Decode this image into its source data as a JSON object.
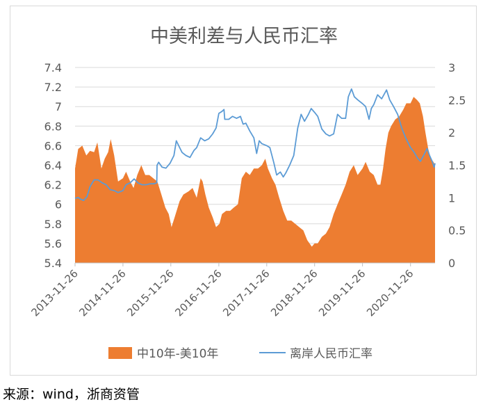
{
  "source_note": "来源：wind，浙商资管",
  "colors": {
    "area": "#ed7d31",
    "line": "#5b9bd5",
    "axis": "#bfbfbf",
    "text": "#595959",
    "title": "#595959"
  },
  "chart_data": {
    "type": "area",
    "title": "中美利差与人民币汇率",
    "x_tick_labels": [
      "2013-11-26",
      "2014-11-26",
      "2015-11-26",
      "2016-11-26",
      "2017-11-26",
      "2018-11-26",
      "2019-11-26",
      "2020-11-26"
    ],
    "y_left": {
      "ticks": [
        "5.4",
        "5.6",
        "5.8",
        "6",
        "6.2",
        "6.4",
        "6.6",
        "6.8",
        "7",
        "7.2",
        "7.4"
      ],
      "ylim": [
        5.4,
        7.4
      ]
    },
    "y_right": {
      "ticks": [
        "0",
        "0.5",
        "1",
        "1.5",
        "2",
        "2.5",
        "3"
      ],
      "ylim": [
        0,
        3
      ]
    },
    "x_range": [
      "2013-11-26",
      "2021-06-01"
    ],
    "legend_position": "bottom",
    "series": [
      {
        "name": "中10年-美10年",
        "type": "area",
        "axis": "right",
        "points": [
          [
            "2013-11-26",
            1.45
          ],
          [
            "2013-12-20",
            1.75
          ],
          [
            "2014-01-20",
            1.8
          ],
          [
            "2014-02-20",
            1.65
          ],
          [
            "2014-03-20",
            1.72
          ],
          [
            "2014-04-20",
            1.7
          ],
          [
            "2014-05-15",
            1.85
          ],
          [
            "2014-06-15",
            1.45
          ],
          [
            "2014-07-10",
            1.6
          ],
          [
            "2014-08-05",
            1.7
          ],
          [
            "2014-08-25",
            1.9
          ],
          [
            "2014-09-20",
            1.65
          ],
          [
            "2014-10-20",
            1.25
          ],
          [
            "2014-11-26",
            1.3
          ],
          [
            "2014-12-20",
            1.4
          ],
          [
            "2015-01-20",
            1.25
          ],
          [
            "2015-02-15",
            1.15
          ],
          [
            "2015-03-15",
            1.35
          ],
          [
            "2015-04-15",
            1.5
          ],
          [
            "2015-05-15",
            1.35
          ],
          [
            "2015-06-15",
            1.35
          ],
          [
            "2015-07-15",
            1.3
          ],
          [
            "2015-08-15",
            1.25
          ],
          [
            "2015-09-15",
            1.05
          ],
          [
            "2015-10-15",
            0.85
          ],
          [
            "2015-11-10",
            0.75
          ],
          [
            "2015-12-01",
            0.55
          ],
          [
            "2015-12-25",
            0.7
          ],
          [
            "2016-02-01",
            0.95
          ],
          [
            "2016-03-01",
            1.05
          ],
          [
            "2016-04-10",
            1.1
          ],
          [
            "2016-05-10",
            1.15
          ],
          [
            "2016-06-10",
            1.0
          ],
          [
            "2016-07-10",
            1.3
          ],
          [
            "2016-07-25",
            1.25
          ],
          [
            "2016-08-15",
            1.05
          ],
          [
            "2016-09-10",
            0.85
          ],
          [
            "2016-10-10",
            0.7
          ],
          [
            "2016-11-05",
            0.55
          ],
          [
            "2016-12-01",
            0.6
          ],
          [
            "2016-12-20",
            0.75
          ],
          [
            "2017-01-20",
            0.8
          ],
          [
            "2017-02-20",
            0.8
          ],
          [
            "2017-03-20",
            0.85
          ],
          [
            "2017-04-20",
            0.9
          ],
          [
            "2017-05-20",
            1.3
          ],
          [
            "2017-06-20",
            1.4
          ],
          [
            "2017-07-20",
            1.35
          ],
          [
            "2017-08-20",
            1.45
          ],
          [
            "2017-09-20",
            1.45
          ],
          [
            "2017-10-20",
            1.5
          ],
          [
            "2017-11-15",
            1.6
          ],
          [
            "2017-12-05",
            1.45
          ],
          [
            "2018-01-05",
            1.3
          ],
          [
            "2018-02-01",
            1.2
          ],
          [
            "2018-03-01",
            1.0
          ],
          [
            "2018-04-01",
            0.8
          ],
          [
            "2018-05-01",
            0.65
          ],
          [
            "2018-06-01",
            0.65
          ],
          [
            "2018-07-01",
            0.6
          ],
          [
            "2018-08-01",
            0.55
          ],
          [
            "2018-09-01",
            0.5
          ],
          [
            "2018-10-01",
            0.35
          ],
          [
            "2018-11-05",
            0.25
          ],
          [
            "2018-11-26",
            0.3
          ],
          [
            "2018-12-20",
            0.3
          ],
          [
            "2019-01-20",
            0.4
          ],
          [
            "2019-02-20",
            0.45
          ],
          [
            "2019-03-20",
            0.55
          ],
          [
            "2019-04-20",
            0.75
          ],
          [
            "2019-05-20",
            0.9
          ],
          [
            "2019-06-20",
            1.05
          ],
          [
            "2019-07-20",
            1.2
          ],
          [
            "2019-08-20",
            1.4
          ],
          [
            "2019-09-20",
            1.5
          ],
          [
            "2019-10-20",
            1.35
          ],
          [
            "2019-11-26",
            1.45
          ],
          [
            "2019-12-20",
            1.55
          ],
          [
            "2020-01-20",
            1.4
          ],
          [
            "2020-02-20",
            1.35
          ],
          [
            "2020-03-20",
            1.2
          ],
          [
            "2020-04-10",
            1.2
          ],
          [
            "2020-05-01",
            1.45
          ],
          [
            "2020-05-20",
            1.75
          ],
          [
            "2020-06-10",
            2.0
          ],
          [
            "2020-07-01",
            2.1
          ],
          [
            "2020-08-01",
            2.2
          ],
          [
            "2020-09-01",
            2.25
          ],
          [
            "2020-10-01",
            2.35
          ],
          [
            "2020-10-25",
            2.45
          ],
          [
            "2020-11-26",
            2.45
          ],
          [
            "2020-12-20",
            2.55
          ],
          [
            "2021-01-15",
            2.5
          ],
          [
            "2021-02-05",
            2.45
          ],
          [
            "2021-03-01",
            2.25
          ],
          [
            "2021-03-20",
            2.0
          ],
          [
            "2021-04-10",
            1.75
          ],
          [
            "2021-05-01",
            1.6
          ],
          [
            "2021-05-20",
            1.55
          ],
          [
            "2021-06-01",
            1.5
          ]
        ]
      },
      {
        "name": "离岸人民币汇率",
        "type": "line",
        "axis": "left",
        "points": [
          [
            "2013-11-26",
            6.06
          ],
          [
            "2013-12-20",
            6.07
          ],
          [
            "2014-01-10",
            6.05
          ],
          [
            "2014-01-31",
            6.04
          ],
          [
            "2014-02-25",
            6.08
          ],
          [
            "2014-03-20",
            6.18
          ],
          [
            "2014-04-20",
            6.25
          ],
          [
            "2014-05-20",
            6.25
          ],
          [
            "2014-06-20",
            6.22
          ],
          [
            "2014-07-20",
            6.2
          ],
          [
            "2014-08-20",
            6.15
          ],
          [
            "2014-09-20",
            6.14
          ],
          [
            "2014-10-20",
            6.12
          ],
          [
            "2014-11-26",
            6.14
          ],
          [
            "2014-12-20",
            6.2
          ],
          [
            "2015-01-20",
            6.22
          ],
          [
            "2015-02-20",
            6.26
          ],
          [
            "2015-03-20",
            6.22
          ],
          [
            "2015-04-20",
            6.2
          ],
          [
            "2015-05-20",
            6.2
          ],
          [
            "2015-06-20",
            6.21
          ],
          [
            "2015-07-20",
            6.21
          ],
          [
            "2015-08-11",
            6.22
          ],
          [
            "2015-08-13",
            6.4
          ],
          [
            "2015-08-25",
            6.43
          ],
          [
            "2015-09-20",
            6.38
          ],
          [
            "2015-10-20",
            6.37
          ],
          [
            "2015-11-20",
            6.42
          ],
          [
            "2015-12-20",
            6.5
          ],
          [
            "2016-01-07",
            6.65
          ],
          [
            "2016-01-25",
            6.6
          ],
          [
            "2016-02-20",
            6.53
          ],
          [
            "2016-03-20",
            6.5
          ],
          [
            "2016-04-20",
            6.48
          ],
          [
            "2016-05-20",
            6.55
          ],
          [
            "2016-06-10",
            6.58
          ],
          [
            "2016-07-10",
            6.68
          ],
          [
            "2016-08-10",
            6.65
          ],
          [
            "2016-09-10",
            6.67
          ],
          [
            "2016-10-10",
            6.72
          ],
          [
            "2016-11-05",
            6.78
          ],
          [
            "2016-11-26",
            6.93
          ],
          [
            "2016-12-20",
            6.95
          ],
          [
            "2017-01-04",
            6.97
          ],
          [
            "2017-01-10",
            6.87
          ],
          [
            "2017-02-10",
            6.87
          ],
          [
            "2017-03-10",
            6.9
          ],
          [
            "2017-04-10",
            6.88
          ],
          [
            "2017-05-10",
            6.9
          ],
          [
            "2017-05-30",
            6.82
          ],
          [
            "2017-06-20",
            6.83
          ],
          [
            "2017-07-20",
            6.75
          ],
          [
            "2017-08-20",
            6.68
          ],
          [
            "2017-09-10",
            6.52
          ],
          [
            "2017-09-30",
            6.65
          ],
          [
            "2017-10-20",
            6.62
          ],
          [
            "2017-11-26",
            6.6
          ],
          [
            "2017-12-20",
            6.58
          ],
          [
            "2018-01-20",
            6.42
          ],
          [
            "2018-02-10",
            6.3
          ],
          [
            "2018-03-10",
            6.33
          ],
          [
            "2018-04-01",
            6.28
          ],
          [
            "2018-04-20",
            6.32
          ],
          [
            "2018-05-20",
            6.4
          ],
          [
            "2018-06-20",
            6.5
          ],
          [
            "2018-07-20",
            6.78
          ],
          [
            "2018-08-15",
            6.92
          ],
          [
            "2018-09-10",
            6.85
          ],
          [
            "2018-10-10",
            6.92
          ],
          [
            "2018-10-31",
            6.98
          ],
          [
            "2018-11-26",
            6.94
          ],
          [
            "2018-12-20",
            6.9
          ],
          [
            "2019-01-20",
            6.77
          ],
          [
            "2019-02-20",
            6.72
          ],
          [
            "2019-03-20",
            6.7
          ],
          [
            "2019-04-20",
            6.72
          ],
          [
            "2019-05-20",
            6.92
          ],
          [
            "2019-06-20",
            6.88
          ],
          [
            "2019-07-20",
            6.88
          ],
          [
            "2019-08-10",
            7.1
          ],
          [
            "2019-09-03",
            7.18
          ],
          [
            "2019-09-25",
            7.1
          ],
          [
            "2019-10-20",
            7.07
          ],
          [
            "2019-11-26",
            7.03
          ],
          [
            "2019-12-20",
            7.0
          ],
          [
            "2020-01-15",
            6.87
          ],
          [
            "2020-02-01",
            6.98
          ],
          [
            "2020-02-20",
            7.02
          ],
          [
            "2020-03-20",
            7.12
          ],
          [
            "2020-04-20",
            7.08
          ],
          [
            "2020-05-27",
            7.17
          ],
          [
            "2020-06-20",
            7.07
          ],
          [
            "2020-07-20",
            7.0
          ],
          [
            "2020-08-20",
            6.92
          ],
          [
            "2020-09-20",
            6.78
          ],
          [
            "2020-10-20",
            6.68
          ],
          [
            "2020-11-26",
            6.58
          ],
          [
            "2020-12-20",
            6.54
          ],
          [
            "2021-01-20",
            6.47
          ],
          [
            "2021-02-10",
            6.44
          ],
          [
            "2021-03-10",
            6.51
          ],
          [
            "2021-04-01",
            6.57
          ],
          [
            "2021-04-20",
            6.5
          ],
          [
            "2021-05-10",
            6.44
          ],
          [
            "2021-05-25",
            6.38
          ],
          [
            "2021-06-01",
            6.42
          ]
        ]
      }
    ]
  }
}
